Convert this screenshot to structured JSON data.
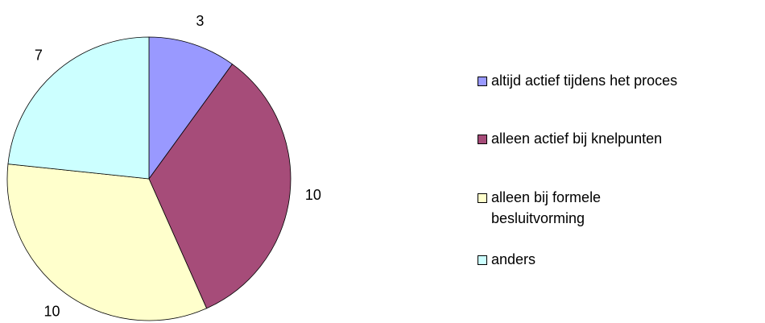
{
  "chart_data": {
    "type": "pie",
    "categories": [
      "altijd actief tijdens het proces",
      "alleen actief bij knelpunten",
      "alleen bij formele besluitvorming",
      "anders"
    ],
    "values": [
      3,
      10,
      10,
      7
    ],
    "colors": [
      "#9999ff",
      "#a64c79",
      "#ffffcc",
      "#ccffff"
    ]
  }
}
